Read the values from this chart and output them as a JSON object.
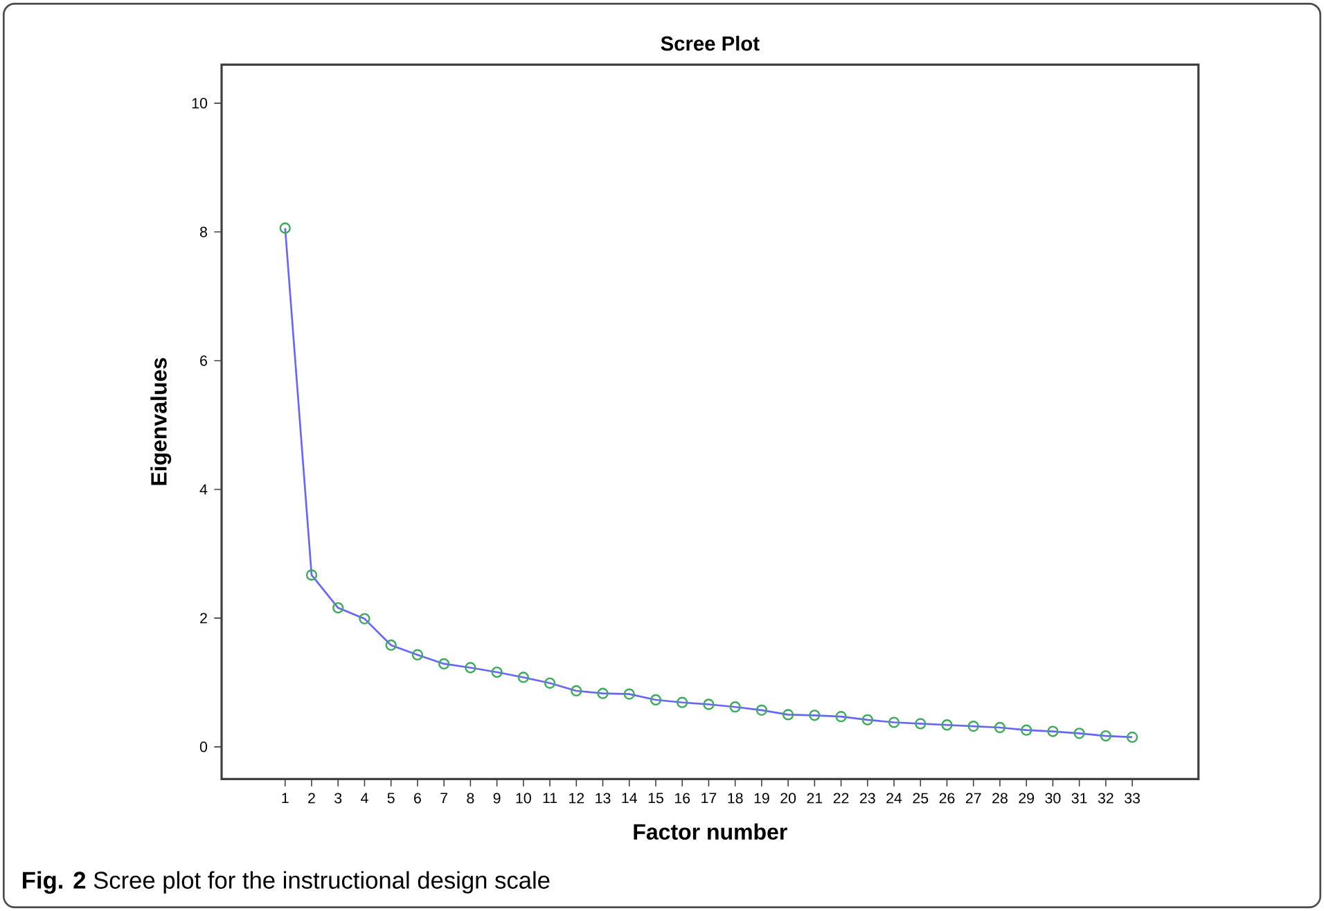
{
  "chart_data": {
    "type": "line",
    "title": "Scree Plot",
    "xlabel": "Factor number",
    "ylabel": "Eigenvalues",
    "x": [
      1,
      2,
      3,
      4,
      5,
      6,
      7,
      8,
      9,
      10,
      11,
      12,
      13,
      14,
      15,
      16,
      17,
      18,
      19,
      20,
      21,
      22,
      23,
      24,
      25,
      26,
      27,
      28,
      29,
      30,
      31,
      32,
      33
    ],
    "series": [
      {
        "color": "#6666ff",
        "values": [
          8.06,
          2.67,
          2.16,
          1.99,
          1.58,
          1.43,
          1.29,
          1.23,
          1.16,
          1.08,
          0.99,
          0.87,
          0.83,
          0.82,
          0.73,
          0.69,
          0.66,
          0.62,
          0.57,
          0.5,
          0.49,
          0.47,
          0.42,
          0.38,
          0.36,
          0.34,
          0.32,
          0.3,
          0.26,
          0.24,
          0.21,
          0.17,
          0.15
        ]
      }
    ],
    "xlim": [
      -1.4,
      35.5
    ],
    "ylim": [
      -0.5,
      10.6
    ],
    "xticks": [
      1,
      2,
      3,
      4,
      5,
      6,
      7,
      8,
      9,
      10,
      11,
      12,
      13,
      14,
      15,
      16,
      17,
      18,
      19,
      20,
      21,
      22,
      23,
      24,
      25,
      26,
      27,
      28,
      29,
      30,
      31,
      32,
      33
    ],
    "yticks": [
      0,
      2,
      4,
      6,
      8,
      10
    ],
    "marker": "circle",
    "line_style": "solid",
    "annotations": [
      "**Fig. 2** Scree plot for the instructional design scale"
    ]
  }
}
